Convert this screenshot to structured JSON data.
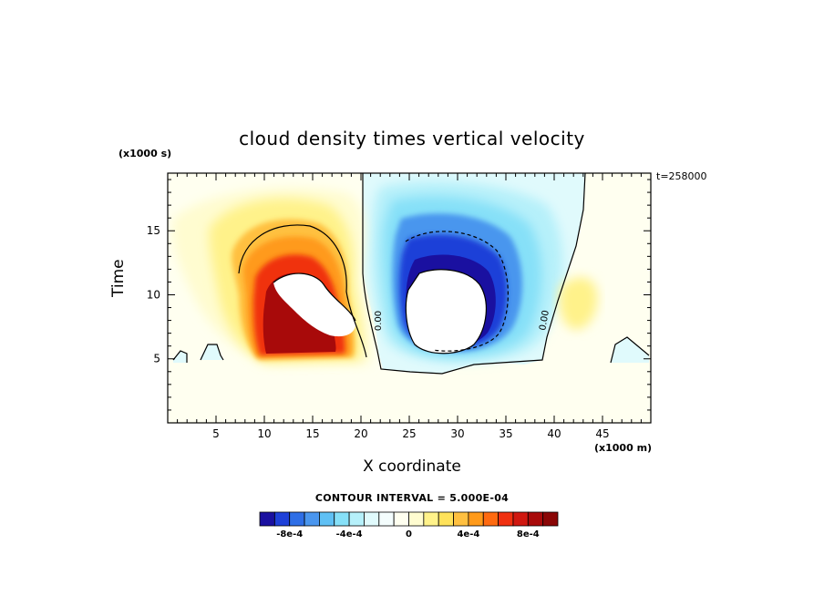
{
  "chart_data": {
    "type": "heatmap",
    "title": "cloud density times vertical velocity",
    "xlabel": "X coordinate",
    "ylabel": "Time",
    "x_unit": "(x1000 m)",
    "y_unit": "(x1000 s)",
    "timestamp": "t=258000",
    "xlim": [
      0,
      50
    ],
    "ylim": [
      0,
      19.5
    ],
    "x_ticks": [
      5,
      10,
      15,
      20,
      25,
      30,
      35,
      40,
      45
    ],
    "y_ticks": [
      5,
      10,
      15
    ],
    "x_tick_labels": [
      "5",
      "10",
      "15",
      "20",
      "25",
      "30",
      "35",
      "40",
      "45"
    ],
    "y_tick_labels": [
      "5",
      "10",
      "15"
    ],
    "contour_interval": "CONTOUR INTERVAL = 5.000E-04",
    "zero_contour_labels": [
      "0.00",
      "0.00"
    ],
    "colorbar": {
      "levels": [
        -0.001,
        -0.0009,
        -0.0008,
        -0.0007,
        -0.0006,
        -0.0005,
        -0.0004,
        -0.0003,
        -0.0002,
        -0.0001,
        0,
        0.0001,
        0.0002,
        0.0003,
        0.0004,
        0.0005,
        0.0006,
        0.0007,
        0.0008,
        0.0009,
        0.001
      ],
      "colors": [
        "#1a10a0",
        "#1e40d8",
        "#2e6ee6",
        "#4a96ee",
        "#5fc0f4",
        "#86e0f8",
        "#b6f0fa",
        "#e0fafc",
        "#f4fdfd",
        "#fffff0",
        "#fffcd0",
        "#fff28a",
        "#ffe25a",
        "#ffc040",
        "#ff9a1a",
        "#ff6a10",
        "#f03010",
        "#d01810",
        "#a80a0a",
        "#8a0606"
      ],
      "tick_values": [
        -0.0008,
        -0.0004,
        0,
        0.0004,
        0.0008
      ],
      "tick_labels": [
        "-8e-4",
        "-4e-4",
        "0",
        "4e-4",
        "8e-4"
      ]
    },
    "features": [
      {
        "sign": "positive",
        "x_range": [
          7,
          20
        ],
        "y_range": [
          5,
          17.5
        ],
        "peak_approx": 0.001
      },
      {
        "sign": "negative",
        "x_range": [
          22,
          43
        ],
        "y_range": [
          4,
          19.5
        ],
        "peak_approx": -0.001
      }
    ],
    "grid": false
  }
}
